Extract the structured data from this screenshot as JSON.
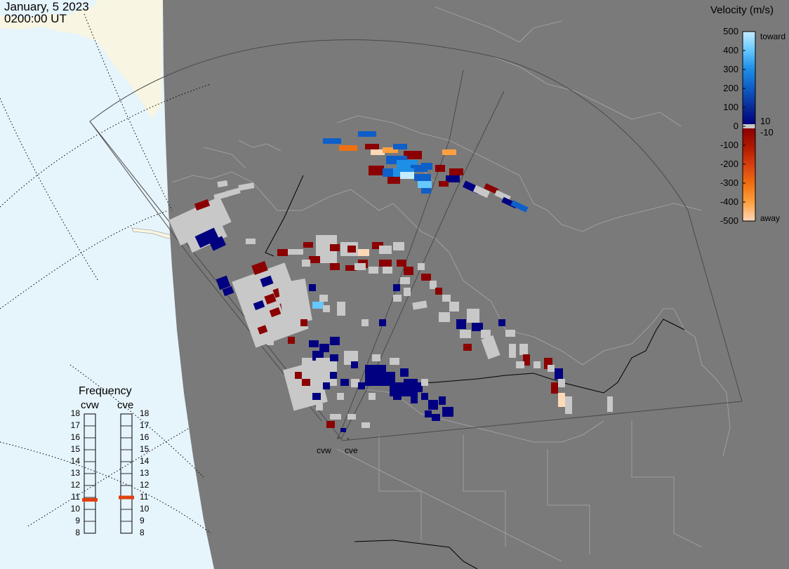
{
  "header": {
    "date": "January, 5 2023",
    "time": "0200:00 UT"
  },
  "colorbar": {
    "title": "Velocity (m/s)",
    "ticks": [
      "500",
      "400",
      "300",
      "200",
      "100",
      "0",
      "-100",
      "-200",
      "-300",
      "-400",
      "-500"
    ],
    "pos_labels": [
      "10"
    ],
    "neg_labels": [
      "-10"
    ],
    "top_word": "toward",
    "bottom_word": "away",
    "colors": {
      "toward_ramp": [
        "#c4ecff",
        "#66c8ff",
        "#1e8fe6",
        "#0f5fc8",
        "#0a2f9a",
        "#000080"
      ],
      "away_ramp": [
        "#8b0000",
        "#b01a00",
        "#d84010",
        "#f07010",
        "#ffa040",
        "#ffd8b8"
      ],
      "ground_scatter": "#c8c8c8"
    }
  },
  "frequency": {
    "title": "Frequency",
    "radars": [
      {
        "name": "cvw",
        "mhz": 10.8
      },
      {
        "name": "cve",
        "mhz": 11.0
      }
    ],
    "scale": [
      "18",
      "17",
      "16",
      "15",
      "14",
      "13",
      "12",
      "11",
      "10",
      "9",
      "8"
    ],
    "marker_color": "#e04010"
  },
  "sites": [
    {
      "name": "cvw"
    },
    {
      "name": "cve"
    }
  ],
  "map": {
    "night_color": "#7a7a7a",
    "day_color": "#e6f4fb",
    "land_color": "#f8f5e2",
    "boundary_color": "#a8a8a8"
  }
}
